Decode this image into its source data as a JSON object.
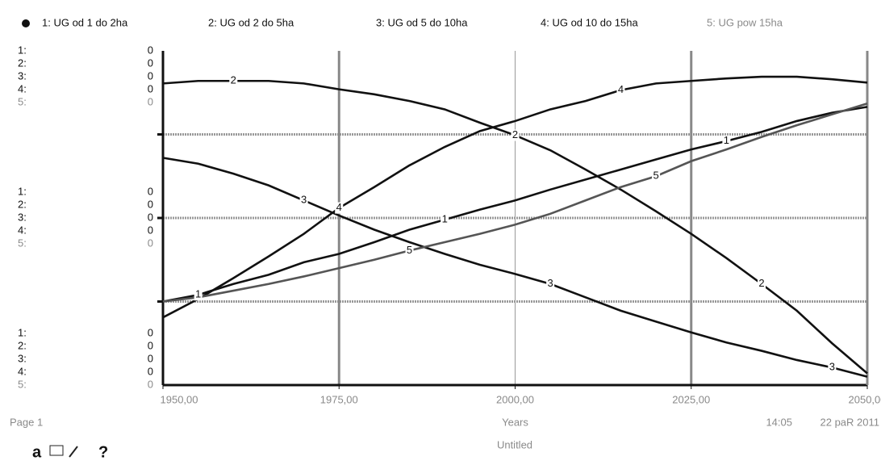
{
  "chart_data": {
    "type": "line",
    "x_label": "Years",
    "x": [
      1950,
      1955,
      1960,
      1965,
      1970,
      1975,
      1980,
      1985,
      1990,
      1995,
      2000,
      2005,
      2010,
      2015,
      2020,
      2025,
      2030,
      2035,
      2040,
      2045,
      2050
    ],
    "xlim": [
      1950,
      2050
    ],
    "xticks": [
      {
        "value": 1950,
        "label": "1950,00"
      },
      {
        "value": 1975,
        "label": "1975,00"
      },
      {
        "value": 2000,
        "label": "2000,00"
      },
      {
        "value": 2025,
        "label": "2025,00"
      },
      {
        "value": 2050,
        "label": "2050,00"
      }
    ],
    "ylim": [
      0,
      4
    ],
    "yticks": [
      {
        "value": 4,
        "label": "0"
      },
      {
        "value": 2,
        "label": "0"
      },
      {
        "value": 0,
        "label": "0"
      }
    ],
    "ygrid": [
      1,
      2,
      3
    ],
    "grid": true,
    "series": [
      {
        "name": "1: UG od 1 do 2ha",
        "key": "1:",
        "marker": "1",
        "color": "#111111",
        "values": [
          1.0,
          1.08,
          1.21,
          1.32,
          1.47,
          1.57,
          1.71,
          1.86,
          1.98,
          2.1,
          2.21,
          2.34,
          2.46,
          2.58,
          2.7,
          2.82,
          2.92,
          3.03,
          3.16,
          3.26,
          3.33
        ]
      },
      {
        "name": "2: UG od 2 do 5ha",
        "key": "2:",
        "marker": "2",
        "color": "#111111",
        "values": [
          3.61,
          3.64,
          3.64,
          3.64,
          3.61,
          3.54,
          3.48,
          3.4,
          3.3,
          3.14,
          2.99,
          2.81,
          2.58,
          2.34,
          2.08,
          1.81,
          1.52,
          1.21,
          0.89,
          0.5,
          0.14
        ]
      },
      {
        "name": "3: UG od 5 do 10ha",
        "key": "3:",
        "marker": "3",
        "color": "#111111",
        "values": [
          2.72,
          2.65,
          2.53,
          2.39,
          2.21,
          2.03,
          1.86,
          1.71,
          1.57,
          1.44,
          1.33,
          1.21,
          1.05,
          0.89,
          0.76,
          0.63,
          0.51,
          0.41,
          0.3,
          0.21,
          0.1
        ]
      },
      {
        "name": "4: UG od 10 do 15ha",
        "key": "4:",
        "marker": "4",
        "color": "#111111",
        "values": [
          0.81,
          1.03,
          1.28,
          1.54,
          1.81,
          2.12,
          2.37,
          2.63,
          2.85,
          3.04,
          3.16,
          3.3,
          3.4,
          3.53,
          3.61,
          3.64,
          3.67,
          3.69,
          3.69,
          3.66,
          3.62
        ]
      },
      {
        "name": "5: UG pow 15ha",
        "key": "5:",
        "marker": "5",
        "color": "#555555",
        "values": [
          1.0,
          1.05,
          1.13,
          1.21,
          1.3,
          1.4,
          1.5,
          1.61,
          1.71,
          1.81,
          1.92,
          2.05,
          2.21,
          2.37,
          2.5,
          2.68,
          2.82,
          2.97,
          3.11,
          3.24,
          3.37
        ]
      }
    ]
  },
  "footer": {
    "page": "Page 1",
    "document": "Untitled",
    "time": "14:05",
    "date": "22 paR 2011"
  },
  "toolbar": {
    "help": "?"
  }
}
